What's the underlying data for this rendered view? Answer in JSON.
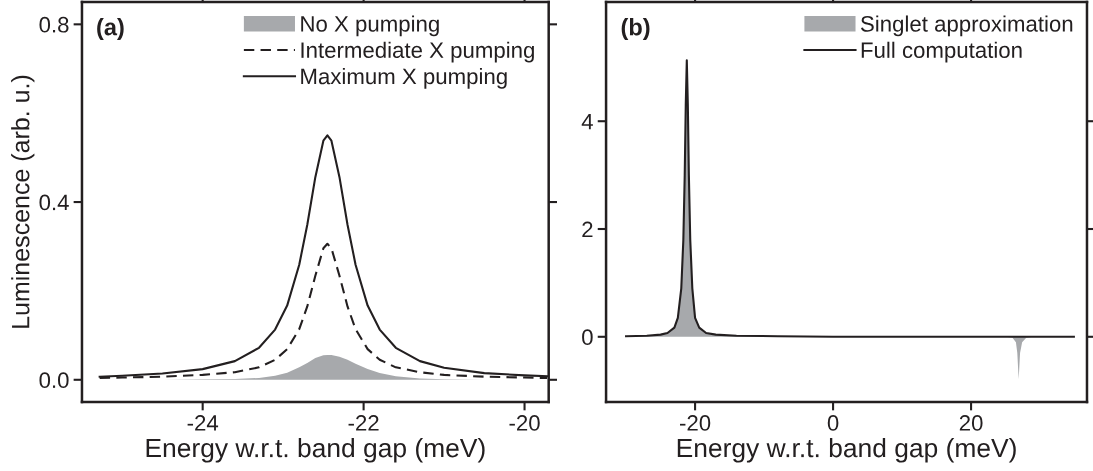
{
  "chart_data": [
    {
      "type": "line",
      "xlabel": "Energy w.r.t. band gap (meV)",
      "ylabel": "Luminescence (arb. u.)",
      "annotations": [
        "(a)"
      ],
      "xlim": [
        -25.5,
        -19.7
      ],
      "xticks": [
        -24,
        -22,
        -20
      ],
      "ylim": [
        -0.05,
        0.85
      ],
      "yticks": [
        {
          "value": 0,
          "label": "0.0"
        },
        {
          "value": 0.4,
          "label": "0.4"
        },
        {
          "value": 0.8,
          "label": "0.8"
        }
      ],
      "grid": false,
      "legend": "top right",
      "x": [
        -25.28,
        -25,
        -24.5,
        -24,
        -23.6,
        -23.3,
        -23.1,
        -22.95,
        -22.8,
        -22.7,
        -22.6,
        -22.5,
        -22.45,
        -22.4,
        -22.3,
        -22.2,
        -22.1,
        -21.95,
        -21.8,
        -21.6,
        -21.3,
        -21,
        -20.5,
        -20,
        -19.72
      ],
      "series": [
        {
          "name": "No X pumping",
          "type": "area",
          "color": "#a7a9ac",
          "values": [
            0,
            0,
            0,
            0.001,
            0.002,
            0.004,
            0.009,
            0.016,
            0.028,
            0.038,
            0.049,
            0.055,
            0.056,
            0.056,
            0.052,
            0.045,
            0.036,
            0.024,
            0.015,
            0.008,
            0.003,
            0.001,
            0,
            0,
            0
          ]
        },
        {
          "name": "Intermediate X pumping",
          "line_style": "dashed",
          "color": "#231f20",
          "values": [
            0.004,
            0.005,
            0.007,
            0.011,
            0.017,
            0.028,
            0.045,
            0.069,
            0.114,
            0.165,
            0.234,
            0.296,
            0.306,
            0.296,
            0.234,
            0.165,
            0.114,
            0.069,
            0.045,
            0.028,
            0.017,
            0.011,
            0.007,
            0.005,
            0.004
          ]
        },
        {
          "name": "Maximum X pumping",
          "line_style": "solid",
          "color": "#231f20",
          "values": [
            0.007,
            0.009,
            0.014,
            0.024,
            0.042,
            0.072,
            0.113,
            0.167,
            0.259,
            0.349,
            0.456,
            0.538,
            0.55,
            0.538,
            0.456,
            0.349,
            0.259,
            0.167,
            0.113,
            0.072,
            0.042,
            0.027,
            0.015,
            0.01,
            0.008
          ]
        }
      ]
    },
    {
      "type": "line",
      "xlabel": "Energy w.r.t. band gap (meV)",
      "annotations": [
        "(b)"
      ],
      "xlim": [
        -32.9,
        36.8
      ],
      "xticks": [
        -20,
        0,
        20
      ],
      "ylim": [
        -1.21,
        6.21
      ],
      "yticks": [
        0,
        2,
        4
      ],
      "grid": false,
      "legend": "top right",
      "x": [
        -30,
        -27,
        -25,
        -24,
        -23,
        -22.5,
        -22,
        -21.7,
        -21.5,
        -21.35,
        -21.2,
        -21.05,
        -20.9,
        -20.7,
        -20.4,
        -20,
        -19.4,
        -18.4,
        -17,
        -14,
        -8,
        0,
        10,
        20,
        25,
        26,
        26.5,
        26.7,
        26.9,
        27.1,
        27.4,
        28,
        29,
        32,
        34.9
      ],
      "series": [
        {
          "name": "Singlet approximation",
          "type": "area",
          "color": "#a7a9ac",
          "values": [
            0.01,
            0.02,
            0.04,
            0.07,
            0.17,
            0.35,
            0.9,
            1.8,
            3.0,
            4.3,
            5.13,
            4.3,
            3.0,
            1.8,
            0.9,
            0.35,
            0.17,
            0.07,
            0.04,
            0.02,
            0.01,
            0,
            0,
            0,
            0,
            -0.02,
            -0.1,
            -0.3,
            -0.79,
            -0.3,
            -0.1,
            -0.02,
            0,
            0,
            0
          ]
        },
        {
          "name": "Full computation",
          "line_style": "solid",
          "color": "#231f20",
          "values": [
            0.01,
            0.02,
            0.04,
            0.07,
            0.17,
            0.35,
            0.9,
            1.8,
            3.0,
            4.3,
            5.13,
            4.3,
            3.0,
            1.8,
            0.9,
            0.35,
            0.17,
            0.07,
            0.04,
            0.02,
            0.01,
            0,
            0,
            0,
            0,
            0,
            0,
            0,
            0,
            0,
            0,
            0,
            0,
            0,
            0
          ]
        }
      ]
    }
  ]
}
